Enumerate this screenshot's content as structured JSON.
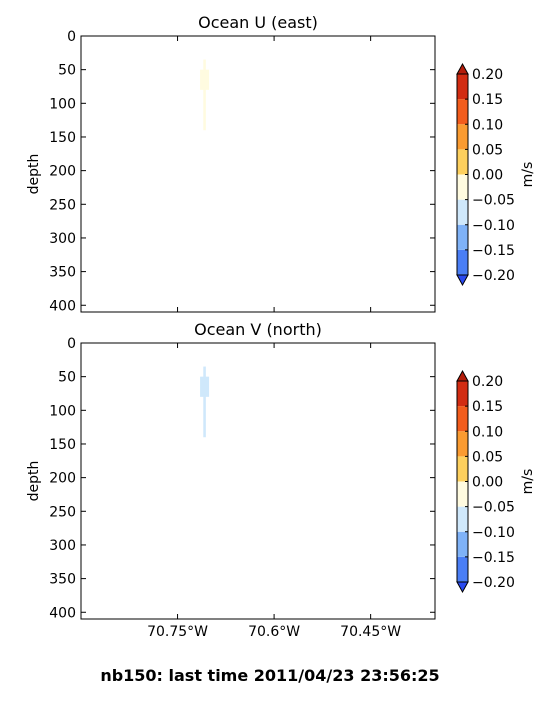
{
  "figure_title": "nb150: last time 2011/04/23 23:56:25",
  "chart_data": [
    {
      "type": "contour",
      "title": "Ocean U (east)",
      "xlabel": "",
      "ylabel": "depth",
      "xlim": [
        -70.9,
        -70.35
      ],
      "ylim": [
        410,
        0
      ],
      "x_ticks": [
        -70.75,
        -70.6,
        -70.45
      ],
      "x_tick_labels": [],
      "y_ticks": [
        0,
        50,
        100,
        150,
        200,
        250,
        300,
        350,
        400
      ],
      "y_tick_labels": [
        "0",
        "50",
        "100",
        "150",
        "200",
        "250",
        "300",
        "350",
        "400"
      ],
      "colorbar": {
        "label": "m/s",
        "levels": [
          -0.2,
          -0.15,
          -0.1,
          -0.05,
          0.0,
          0.05,
          0.1,
          0.15,
          0.2
        ],
        "tick_labels": [
          "−0.20",
          "−0.15",
          "−0.10",
          "−0.05",
          "0.00",
          "0.05",
          "0.10",
          "0.15",
          "0.20"
        ],
        "colors": [
          "#2a4af0",
          "#4a7ef5",
          "#7fb2f7",
          "#cfe8fb",
          "#fffbe0",
          "#fdd05e",
          "#fa9b31",
          "#f25c1c",
          "#d22c12",
          "#b41d0b"
        ],
        "extend": "both"
      },
      "features": [
        {
          "label": "profile-core",
          "x": [
            -70.715,
            -70.701
          ],
          "depth": [
            50,
            80
          ],
          "band": 4
        },
        {
          "label": "profile-stem",
          "x": [
            -70.71,
            -70.706
          ],
          "depth": [
            35,
            140
          ],
          "band": 4
        }
      ]
    },
    {
      "type": "contour",
      "title": "Ocean V (north)",
      "xlabel": "",
      "ylabel": "depth",
      "xlim": [
        -70.9,
        -70.35
      ],
      "ylim": [
        410,
        0
      ],
      "x_ticks": [
        -70.75,
        -70.6,
        -70.45
      ],
      "x_tick_labels": [
        "70.75°W",
        "70.6°W",
        "70.45°W"
      ],
      "y_ticks": [
        0,
        50,
        100,
        150,
        200,
        250,
        300,
        350,
        400
      ],
      "y_tick_labels": [
        "0",
        "50",
        "100",
        "150",
        "200",
        "250",
        "300",
        "350",
        "400"
      ],
      "colorbar": {
        "label": "m/s",
        "levels": [
          -0.2,
          -0.15,
          -0.1,
          -0.05,
          0.0,
          0.05,
          0.1,
          0.15,
          0.2
        ],
        "tick_labels": [
          "−0.20",
          "−0.15",
          "−0.10",
          "−0.05",
          "0.00",
          "0.05",
          "0.10",
          "0.15",
          "0.20"
        ],
        "colors": [
          "#2a4af0",
          "#4a7ef5",
          "#7fb2f7",
          "#cfe8fb",
          "#fffbe0",
          "#fdd05e",
          "#fa9b31",
          "#f25c1c",
          "#d22c12",
          "#b41d0b"
        ],
        "extend": "both"
      },
      "features": [
        {
          "label": "profile-core",
          "x": [
            -70.715,
            -70.701
          ],
          "depth": [
            50,
            80
          ],
          "band": 3
        },
        {
          "label": "profile-stem",
          "x": [
            -70.71,
            -70.706
          ],
          "depth": [
            35,
            140
          ],
          "band": 3
        }
      ]
    }
  ]
}
